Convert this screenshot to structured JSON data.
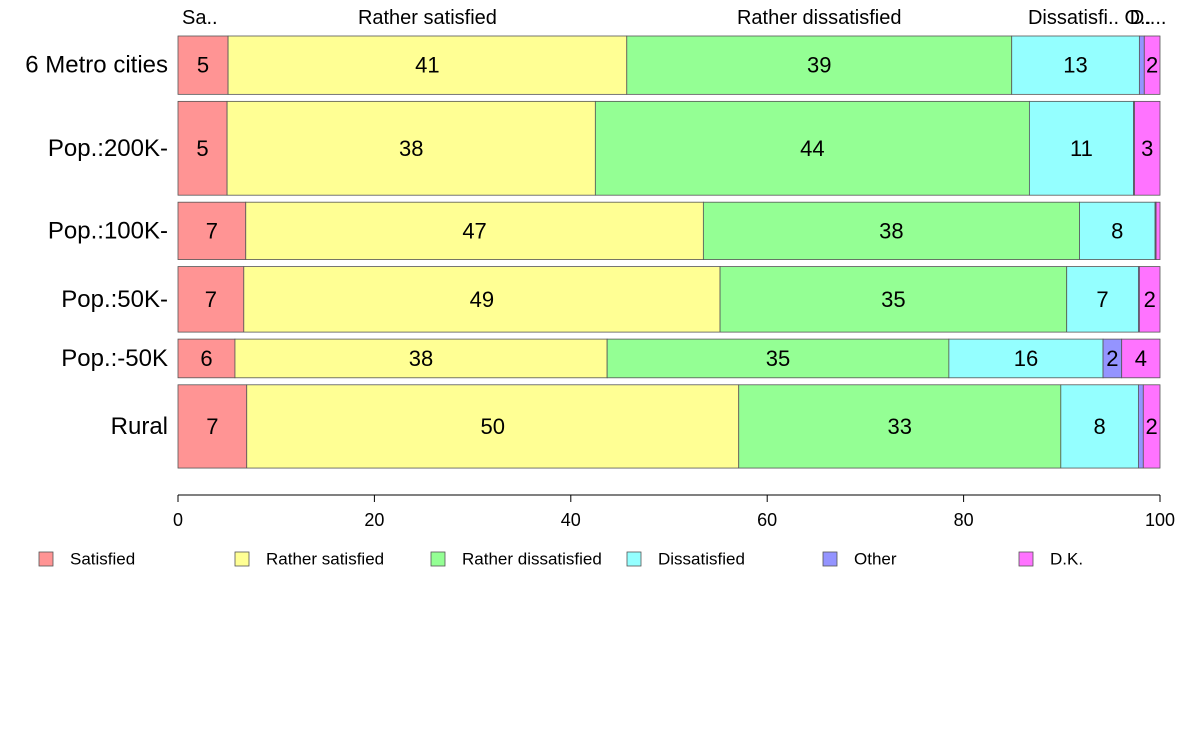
{
  "chart_data": {
    "type": "bar",
    "orientation": "horizontal",
    "stacked": true,
    "percent": true,
    "categories": [
      "6 Metro cities",
      "Pop.:200K-",
      "Pop.:100K-",
      "Pop.:50K-",
      "Pop.:-50K",
      "Rural"
    ],
    "category_weights": [
      0.1413,
      0.2272,
      0.1389,
      0.1587,
      0.0937,
      0.2016
    ],
    "series": [
      {
        "name": "Satisfied",
        "color": "#ff9494",
        "values": [
          5.1,
          5.0,
          6.9,
          6.7,
          5.8,
          7.0
        ]
      },
      {
        "name": "Rather satisfied",
        "color": "#ffff94",
        "values": [
          40.6,
          37.5,
          46.6,
          48.5,
          37.9,
          50.1
        ]
      },
      {
        "name": "Rather dissatisfied",
        "color": "#94ff94",
        "values": [
          39.2,
          44.2,
          38.3,
          35.3,
          34.8,
          32.8
        ]
      },
      {
        "name": "Dissatisfied",
        "color": "#94ffff",
        "values": [
          13.0,
          10.6,
          7.7,
          7.3,
          15.7,
          7.9
        ]
      },
      {
        "name": "Other",
        "color": "#9494ff",
        "values": [
          0.5,
          0.1,
          0.1,
          0.1,
          1.9,
          0.5
        ]
      },
      {
        "name": "D.K.",
        "color": "#ff73ff",
        "values": [
          1.6,
          2.6,
          0.4,
          2.1,
          3.9,
          1.7
        ]
      }
    ],
    "segment_labels": [
      [
        "5",
        "41",
        "39",
        "13",
        "",
        "2"
      ],
      [
        "5",
        "38",
        "44",
        "11",
        "",
        "3"
      ],
      [
        "7",
        "47",
        "38",
        "8",
        "",
        ""
      ],
      [
        "7",
        "49",
        "35",
        "7",
        "",
        "2"
      ],
      [
        "6",
        "38",
        "35",
        "16",
        "2",
        "4"
      ],
      [
        "7",
        "50",
        "33",
        "8",
        "",
        "2"
      ]
    ],
    "top_labels": [
      "Sa..",
      "Rather satisfied",
      "Rather dissatisfied",
      "Dissatisfi..",
      "O..",
      "D...."
    ],
    "xlim": [
      0,
      100
    ],
    "xticks": [
      0,
      20,
      40,
      60,
      80,
      100
    ],
    "grid": false,
    "legend_position": "bottom"
  }
}
